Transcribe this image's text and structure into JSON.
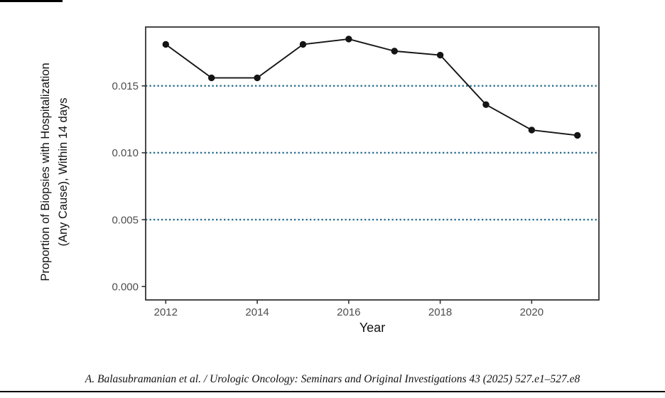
{
  "figure": {
    "citation": "A. Balasubramanian et al. / Urologic Oncology: Seminars and Original Investigations 43 (2025) 527.e1–527.e8"
  },
  "chart_data": {
    "type": "line",
    "title": "",
    "xlabel": "Year",
    "ylabel_line1": "Proportion of Biopsies with Hospitalization",
    "ylabel_line2": "(Any Cause), Within 14 days",
    "x": [
      2012,
      2013,
      2014,
      2015,
      2016,
      2017,
      2018,
      2019,
      2020,
      2021
    ],
    "values": [
      0.0181,
      0.0156,
      0.0156,
      0.0181,
      0.0185,
      0.0176,
      0.0173,
      0.0136,
      0.0117,
      0.0113
    ],
    "x_ticks": [
      2012,
      2014,
      2016,
      2018,
      2020
    ],
    "y_ticks": [
      0.0,
      0.005,
      0.01,
      0.015
    ],
    "y_tick_decimals": 3,
    "gridlines_y": [
      0.005,
      0.01,
      0.015
    ],
    "grid_style": "dotted",
    "xlim": [
      2011.56,
      2021.47
    ],
    "ylim": [
      -0.001,
      0.0194
    ],
    "legend": "none",
    "colors": {
      "series": "#141414",
      "gridline": "#2C6E8F",
      "axis_text": "#4D4D4D",
      "axis_tick": "#333333",
      "panel_border": "#343434"
    }
  }
}
